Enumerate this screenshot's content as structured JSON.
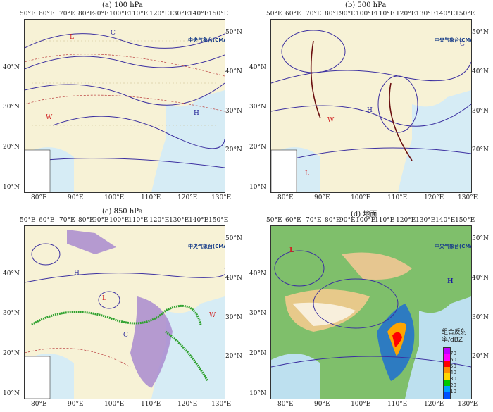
{
  "panels": [
    {
      "title": "(a) 100 hPa",
      "top_lons": [
        "50°E",
        "60°E",
        "70°E",
        "80°E",
        "90°E",
        "100°E",
        "110°E",
        "120°E",
        "130°E",
        "140°E",
        "150°E"
      ],
      "bottom_lons": [
        "80°E",
        "90°E",
        "100°E",
        "110°E",
        "120°E",
        "130°E"
      ],
      "left_lats": [
        "40°N",
        "30°N",
        "20°N",
        "10°N"
      ],
      "right_lats": [
        "50°N",
        "40°N",
        "30°N",
        "20°N"
      ]
    },
    {
      "title": "(b) 500 hPa",
      "top_lons": [
        "50°E",
        "60°E",
        "70°E",
        "80°E",
        "90°E",
        "100°E",
        "110°E",
        "120°E",
        "130°E",
        "140°E",
        "150°E"
      ],
      "bottom_lons": [
        "80°E",
        "90°E",
        "100°E",
        "110°E",
        "120°E",
        "130°E"
      ],
      "left_lats": [
        "40°N",
        "30°N",
        "20°N",
        "10°N"
      ],
      "right_lats": [
        "50°N",
        "40°N",
        "30°N",
        "20°N"
      ]
    },
    {
      "title": "(c) 850 hPa",
      "top_lons": [
        "50°E",
        "60°E",
        "70°E",
        "80°E",
        "90°E",
        "100°E",
        "110°E",
        "120°E",
        "130°E",
        "140°E",
        "150°E"
      ],
      "bottom_lons": [
        "80°E",
        "90°E",
        "100°E",
        "110°E",
        "120°E",
        "130°E"
      ],
      "left_lats": [
        "40°N",
        "30°N",
        "20°N",
        "10°N"
      ],
      "right_lats": [
        "50°N",
        "40°N",
        "30°N",
        "20°N"
      ]
    },
    {
      "title": "(d) 地面",
      "top_lons": [
        "50°E",
        "60°E",
        "70°E",
        "80°E",
        "90°E",
        "100°E",
        "110°E",
        "120°E",
        "130°E",
        "140°E",
        "150°E"
      ],
      "bottom_lons": [
        "80°E",
        "90°E",
        "100°E",
        "110°E",
        "120°E",
        "130°E"
      ],
      "left_lats": [
        "40°N",
        "30°N",
        "20°N",
        "10°N"
      ],
      "right_lats": [
        "50°N",
        "40°N",
        "30°N",
        "20°N"
      ]
    }
  ],
  "logo_text": "中央气象台(CMA)",
  "legend": {
    "title_line1": "组合反射",
    "title_line2": "率/dBZ",
    "ticks": [
      "70",
      "60",
      "50",
      "40",
      "30",
      "20",
      "10"
    ],
    "colors": [
      "#c000ff",
      "#ff00ff",
      "#ff0000",
      "#ff8c00",
      "#ffd700",
      "#00c800",
      "#00a0ff",
      "#0050ff"
    ]
  },
  "map_markers": {
    "high": "H",
    "low": "L",
    "warm": "W",
    "cold": "C"
  }
}
